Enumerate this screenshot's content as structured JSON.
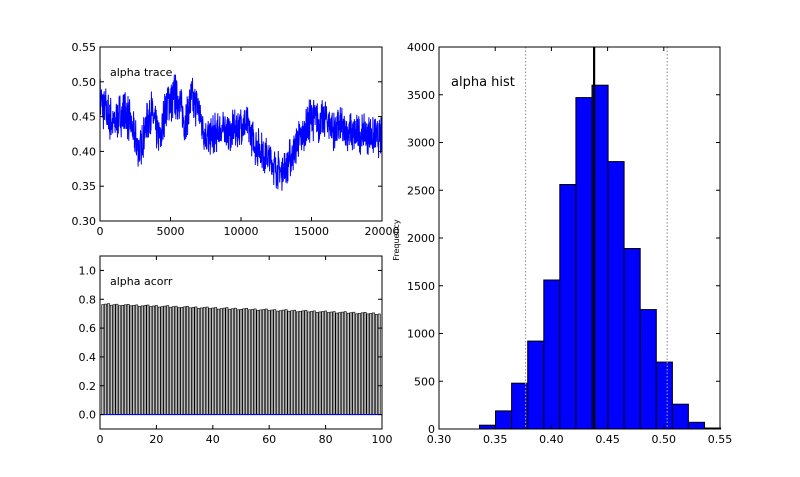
{
  "chart_data": [
    {
      "type": "line",
      "title": "alpha trace",
      "xlabel": "",
      "ylabel": "",
      "xlim": [
        0,
        20000
      ],
      "ylim": [
        0.3,
        0.55
      ],
      "xticks": [
        "0",
        "5000",
        "10000",
        "15000",
        "20000"
      ],
      "yticks": [
        "0.30",
        "0.35",
        "0.40",
        "0.45",
        "0.50",
        "0.55"
      ],
      "series": [
        {
          "name": "alpha",
          "color": "#0000ff",
          "x": [
            0,
            500,
            1000,
            1500,
            2000,
            2500,
            2800,
            3200,
            3600,
            4000,
            4300,
            4700,
            5200,
            5600,
            6000,
            6500,
            7000,
            7500,
            8000,
            8500,
            9000,
            9500,
            10000,
            10500,
            11000,
            11500,
            12000,
            12500,
            12800,
            13200,
            13600,
            14000,
            14500,
            15000,
            15500,
            16000,
            16500,
            17000,
            17500,
            18000,
            18500,
            19000,
            19500,
            20000
          ],
          "center": [
            0.475,
            0.455,
            0.44,
            0.455,
            0.45,
            0.42,
            0.4,
            0.43,
            0.46,
            0.43,
            0.42,
            0.47,
            0.48,
            0.475,
            0.44,
            0.475,
            0.46,
            0.42,
            0.425,
            0.43,
            0.43,
            0.43,
            0.44,
            0.435,
            0.41,
            0.4,
            0.39,
            0.375,
            0.37,
            0.38,
            0.395,
            0.415,
            0.425,
            0.45,
            0.44,
            0.45,
            0.43,
            0.435,
            0.43,
            0.425,
            0.425,
            0.425,
            0.42,
            0.42
          ],
          "spread": [
            0.035,
            0.04,
            0.03,
            0.035,
            0.035,
            0.03,
            0.03,
            0.03,
            0.035,
            0.03,
            0.03,
            0.035,
            0.04,
            0.03,
            0.03,
            0.035,
            0.03,
            0.03,
            0.03,
            0.03,
            0.03,
            0.03,
            0.03,
            0.03,
            0.03,
            0.03,
            0.03,
            0.03,
            0.03,
            0.03,
            0.03,
            0.03,
            0.03,
            0.035,
            0.03,
            0.03,
            0.03,
            0.03,
            0.03,
            0.03,
            0.03,
            0.03,
            0.03,
            0.03
          ]
        }
      ],
      "grid": false
    },
    {
      "type": "bar",
      "title": "alpha acorr",
      "xlabel": "",
      "ylabel": "",
      "xlim": [
        0,
        100
      ],
      "ylim": [
        -0.1,
        1.1
      ],
      "xticks": [
        "0",
        "20",
        "40",
        "60",
        "80",
        "100"
      ],
      "yticks": [
        "0.0",
        "0.2",
        "0.4",
        "0.6",
        "0.8",
        "1.0"
      ],
      "lags_range": [
        1,
        99
      ],
      "value_start": 0.765,
      "value_end": 0.7,
      "zero_line_color": "#0000ff",
      "bar_fill": "#bfbfbf",
      "bar_edge": "#000000",
      "grid": false
    },
    {
      "type": "bar",
      "title": "alpha hist",
      "xlabel": "",
      "ylabel": "Frequency",
      "xlim": [
        0.3,
        0.55
      ],
      "ylim": [
        0,
        4000
      ],
      "xticks": [
        "0.30",
        "0.35",
        "0.40",
        "0.45",
        "0.50",
        "0.55"
      ],
      "yticks": [
        "0",
        "500",
        "1000",
        "1500",
        "2000",
        "2500",
        "3000",
        "3500",
        "4000"
      ],
      "bin_edges": [
        0.336,
        0.3503,
        0.3646,
        0.3789,
        0.3932,
        0.4075,
        0.4218,
        0.4361,
        0.4504,
        0.4647,
        0.479,
        0.4933,
        0.5076,
        0.5219,
        0.5362,
        0.5505
      ],
      "counts": [
        40,
        190,
        480,
        920,
        1560,
        2560,
        3470,
        3600,
        2800,
        1890,
        1250,
        700,
        260,
        70,
        10
      ],
      "fill": "#0000ff",
      "mean_line": 0.438,
      "ci_lines": [
        0.377,
        0.503
      ],
      "grid": false
    }
  ]
}
